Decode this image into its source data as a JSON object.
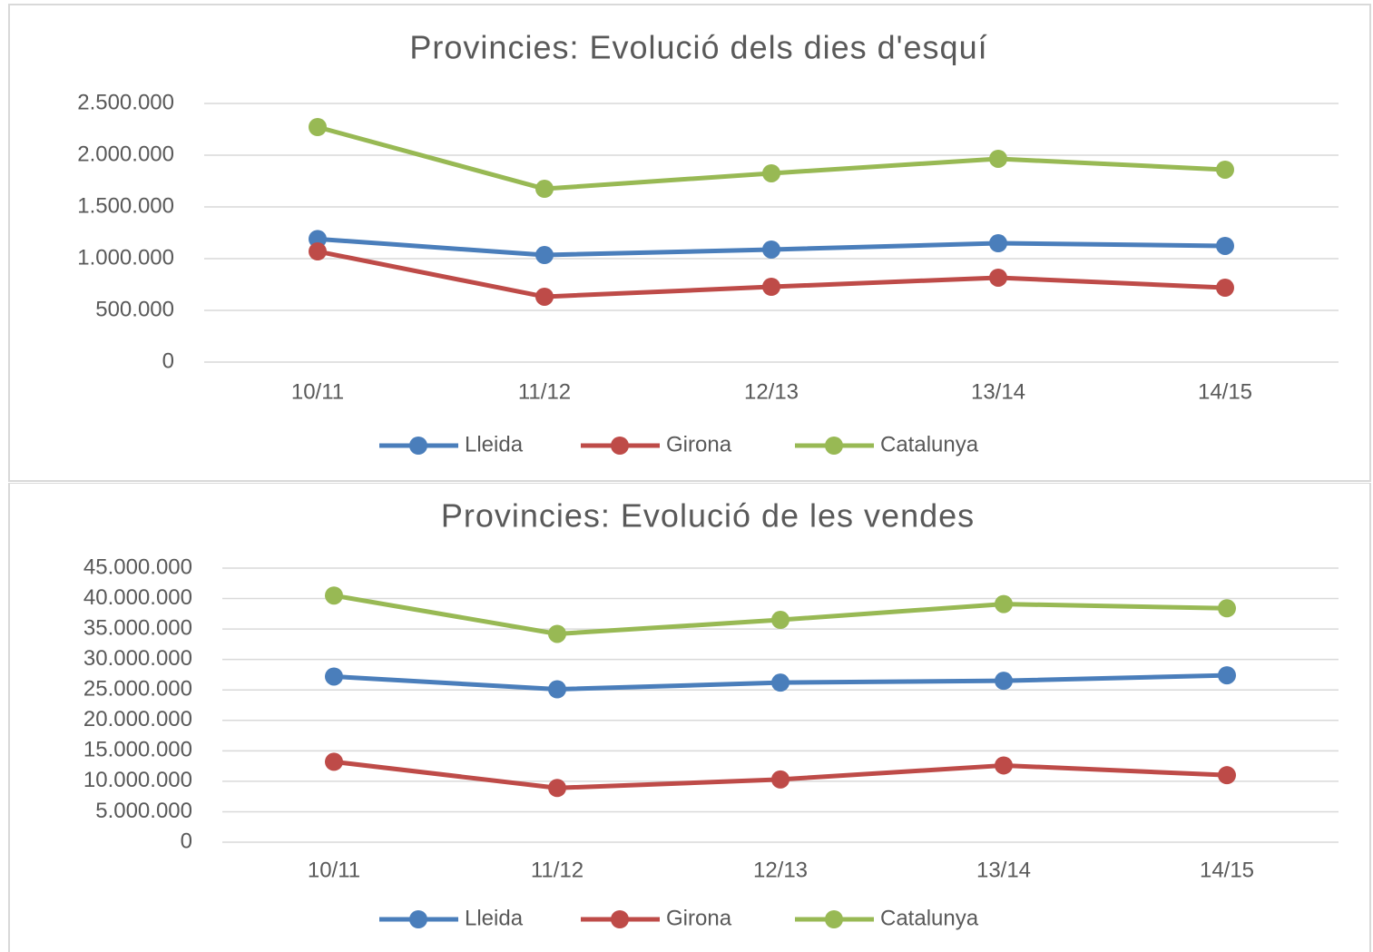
{
  "chart_data": [
    {
      "type": "line",
      "title": "Provincies: Evolució dels dies d'esquí",
      "categories": [
        "10/11",
        "11/12",
        "12/13",
        "13/14",
        "14/15"
      ],
      "series": [
        {
          "name": "Lleida",
          "color": "#4a7ebb",
          "values": [
            1190000,
            1035000,
            1088000,
            1149000,
            1123000
          ]
        },
        {
          "name": "Girona",
          "color": "#be4b48",
          "values": [
            1070000,
            632000,
            728000,
            816000,
            719000
          ]
        },
        {
          "name": "Catalunya",
          "color": "#98b954",
          "values": [
            2272000,
            1675000,
            1825000,
            1965000,
            1860000
          ]
        }
      ],
      "ylim": [
        0,
        2500000
      ],
      "yticks": [
        0,
        {
          "value": 500000,
          "label": "500.000"
        },
        {
          "value": 1000000,
          "label": "1.000.000"
        },
        {
          "value": 1500000,
          "label": "1.500.000"
        },
        {
          "value": 2000000,
          "label": "2.000.000"
        },
        {
          "value": 2500000,
          "label": "2.500.000"
        }
      ],
      "grid": true,
      "legend": "bottom"
    },
    {
      "type": "line",
      "title": "Provincies: Evolució de les vendes",
      "categories": [
        "10/11",
        "11/12",
        "12/13",
        "13/14",
        "14/15"
      ],
      "series": [
        {
          "name": "Lleida",
          "color": "#4a7ebb",
          "values": [
            27200000,
            25100000,
            26200000,
            26500000,
            27400000
          ]
        },
        {
          "name": "Girona",
          "color": "#be4b48",
          "values": [
            13200000,
            8900000,
            10300000,
            12600000,
            11000000
          ]
        },
        {
          "name": "Catalunya",
          "color": "#98b954",
          "values": [
            40500000,
            34200000,
            36500000,
            39100000,
            38400000
          ]
        }
      ],
      "ylim": [
        0,
        45000000
      ],
      "yticks": [
        0,
        {
          "value": 5000000,
          "label": "5.000.000"
        },
        {
          "value": 10000000,
          "label": "10.000.000"
        },
        {
          "value": 15000000,
          "label": "15.000.000"
        },
        {
          "value": 20000000,
          "label": "20.000.000"
        },
        {
          "value": 25000000,
          "label": "25.000.000"
        },
        {
          "value": 30000000,
          "label": "30.000.000"
        },
        {
          "value": 35000000,
          "label": "35.000.000"
        },
        {
          "value": 40000000,
          "label": "40.000.000"
        },
        {
          "value": 45000000,
          "label": "45.000.000"
        }
      ],
      "grid": true,
      "legend": "bottom"
    }
  ]
}
